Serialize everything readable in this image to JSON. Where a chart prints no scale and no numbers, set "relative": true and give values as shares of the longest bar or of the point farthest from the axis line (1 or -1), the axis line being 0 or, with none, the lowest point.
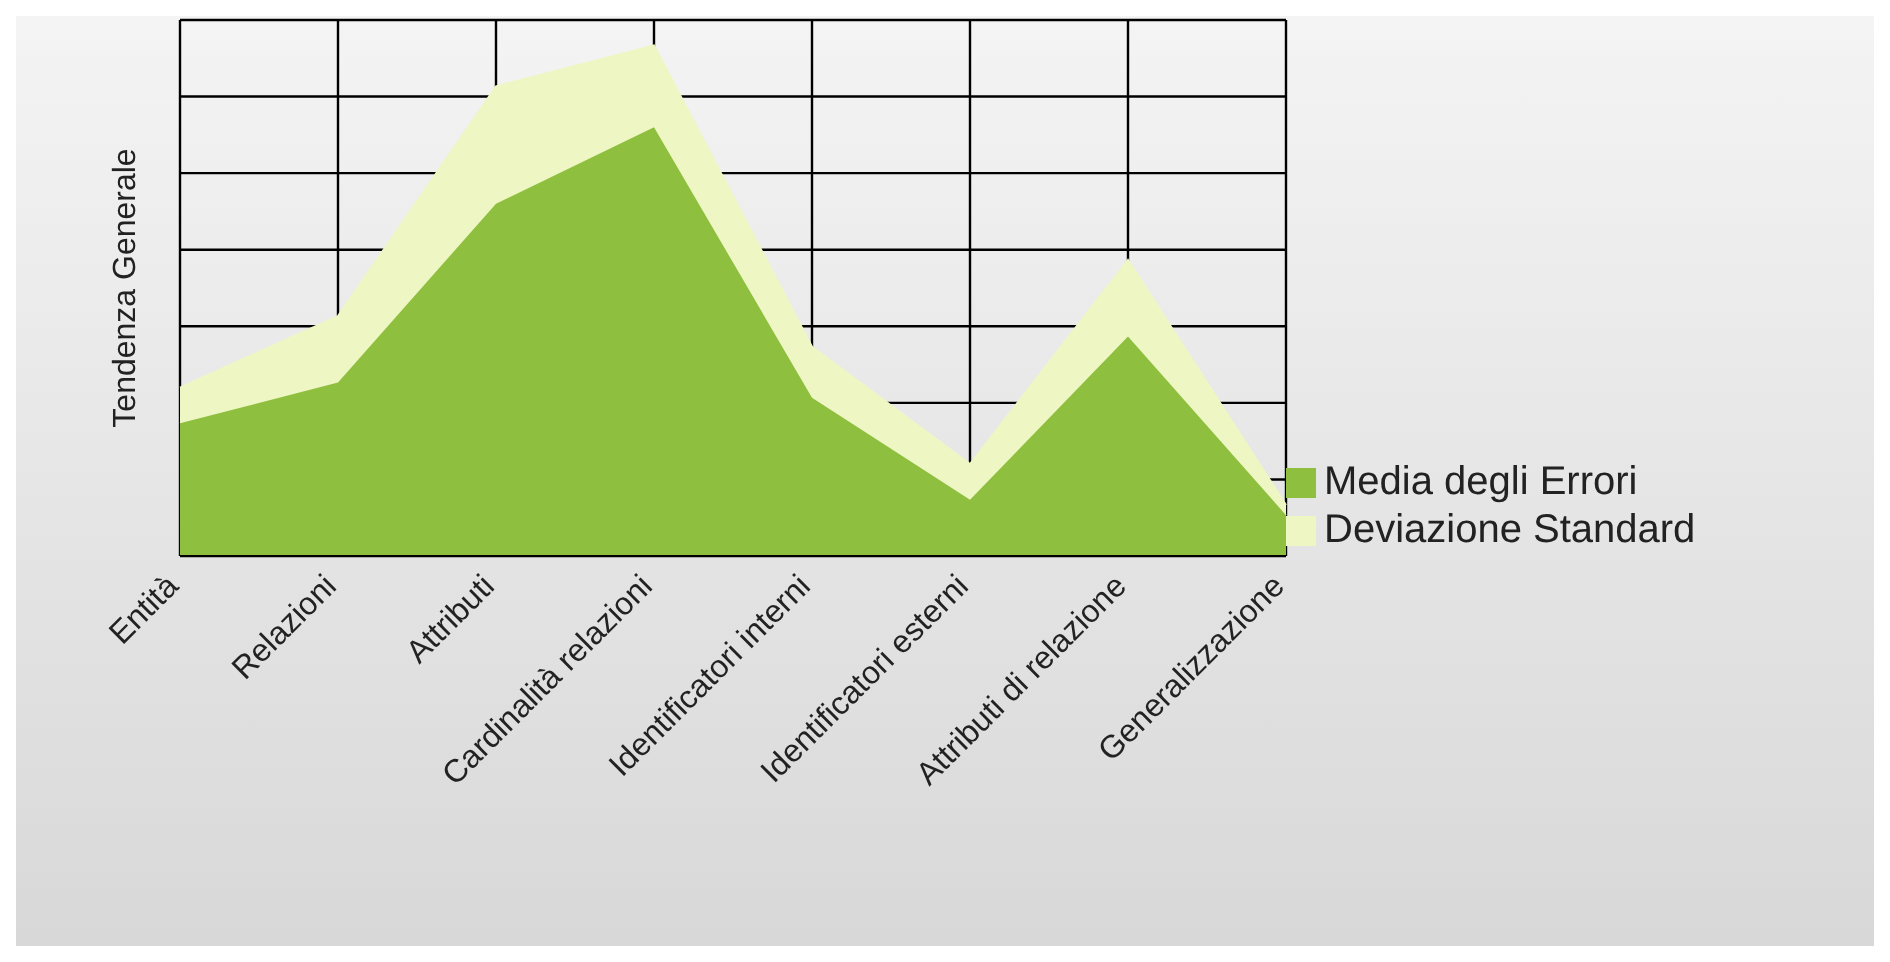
{
  "chart_data": {
    "type": "area",
    "relative": true,
    "stacked": true,
    "ylabel": "Tendenza Generale",
    "grid": true,
    "legend": "right",
    "categories": [
      "Entità",
      "Relazioni",
      "Attributi",
      "Cardinalità relazioni",
      "Identificatori interni",
      "Identificatori esterni",
      "Attributi di relazione",
      "Generalizzazione"
    ],
    "series": [
      {
        "name": "Media degli Errori",
        "color": "#8fbf3f",
        "values": [
          0.26,
          0.34,
          0.69,
          0.84,
          0.31,
          0.11,
          0.43,
          0.08
        ]
      },
      {
        "name": "Deviazione Standard",
        "color": "#eef6c4",
        "values": [
          0.07,
          0.13,
          0.23,
          0.16,
          0.1,
          0.07,
          0.15,
          0.02
        ]
      }
    ]
  }
}
